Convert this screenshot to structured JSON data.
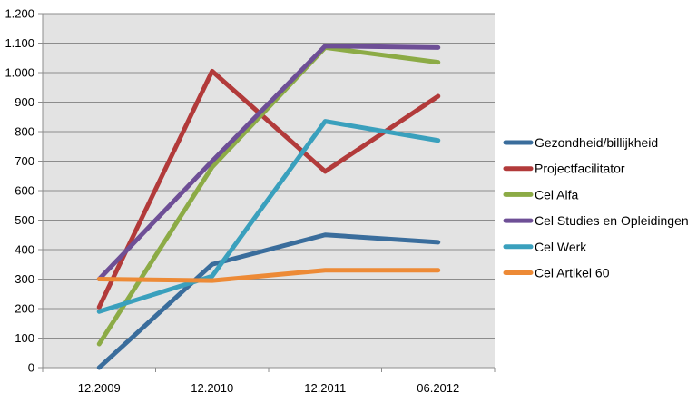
{
  "chart_data": {
    "type": "line",
    "title": "",
    "xlabel": "",
    "ylabel": "",
    "categories": [
      "12.2009",
      "12.2010",
      "12.2011",
      "06.2012"
    ],
    "ylim": [
      0,
      1200
    ],
    "y_ticks": [
      0,
      100,
      200,
      300,
      400,
      500,
      600,
      700,
      800,
      900,
      1000,
      1100,
      1200
    ],
    "y_tick_labels": [
      "0",
      "100",
      "200",
      "300",
      "400",
      "500",
      "600",
      "700",
      "800",
      "900",
      "1.000",
      "1.100",
      "1.200"
    ],
    "grid": "horizontal",
    "plot_background": "#e3e3e3",
    "legend_position": "right",
    "series": [
      {
        "name": "Gezondheid/billijkheid",
        "color": "#3a6d9c",
        "values": [
          0,
          350,
          450,
          425
        ]
      },
      {
        "name": "Projectfacilitator",
        "color": "#b23a3a",
        "values": [
          205,
          1005,
          665,
          920
        ]
      },
      {
        "name": "Cel Alfa",
        "color": "#8cab46",
        "values": [
          80,
          680,
          1085,
          1035
        ]
      },
      {
        "name": "Cel Studies en Opleidingen",
        "color": "#6e4f96",
        "values": [
          300,
          700,
          1090,
          1085
        ]
      },
      {
        "name": "Cel Werk",
        "color": "#3aa0bd",
        "values": [
          190,
          310,
          835,
          770
        ]
      },
      {
        "name": "Cel Artikel 60",
        "color": "#ed8a36",
        "values": [
          300,
          295,
          330,
          330
        ]
      }
    ]
  }
}
